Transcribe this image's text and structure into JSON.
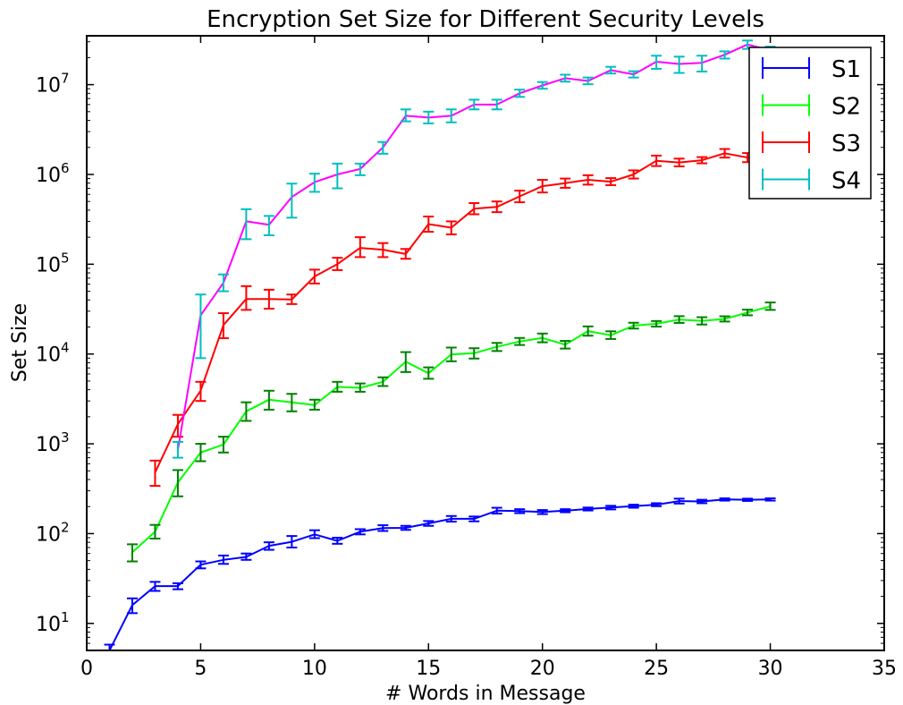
{
  "chart_data": {
    "type": "line",
    "title": "Encryption Set Size for Different Security Levels",
    "xlabel": "# Words in Message",
    "ylabel": "Set Size",
    "xlim": [
      0,
      35
    ],
    "ylim": [
      5,
      35000000
    ],
    "yscale": "log",
    "x_ticks": [
      0,
      5,
      10,
      15,
      20,
      25,
      30,
      35
    ],
    "y_ticks": [
      {
        "value": 10,
        "base": "10",
        "exp": "1"
      },
      {
        "value": 100,
        "base": "10",
        "exp": "2"
      },
      {
        "value": 1000,
        "base": "10",
        "exp": "3"
      },
      {
        "value": 10000,
        "base": "10",
        "exp": "4"
      },
      {
        "value": 100000,
        "base": "10",
        "exp": "5"
      },
      {
        "value": 1000000,
        "base": "10",
        "exp": "6"
      },
      {
        "value": 10000000,
        "base": "10",
        "exp": "7"
      }
    ],
    "grid": false,
    "legend_position": "top-right",
    "series": [
      {
        "name": "S1",
        "line_color": "#0000ff",
        "error_color": "#0000ff",
        "points": [
          {
            "x": 1,
            "y": 5,
            "lo": 4.5,
            "hi": 5.8
          },
          {
            "x": 2,
            "y": 16,
            "lo": 13,
            "hi": 19
          },
          {
            "x": 3,
            "y": 26,
            "lo": 23,
            "hi": 29
          },
          {
            "x": 4,
            "y": 26,
            "lo": 24,
            "hi": 28
          },
          {
            "x": 5,
            "y": 45,
            "lo": 41,
            "hi": 49
          },
          {
            "x": 6,
            "y": 51,
            "lo": 46,
            "hi": 57
          },
          {
            "x": 7,
            "y": 55,
            "lo": 51,
            "hi": 60
          },
          {
            "x": 8,
            "y": 73,
            "lo": 66,
            "hi": 80
          },
          {
            "x": 9,
            "y": 81,
            "lo": 70,
            "hi": 94
          },
          {
            "x": 10,
            "y": 98,
            "lo": 89,
            "hi": 109
          },
          {
            "x": 11,
            "y": 83,
            "lo": 77,
            "hi": 90
          },
          {
            "x": 12,
            "y": 105,
            "lo": 98,
            "hi": 112
          },
          {
            "x": 13,
            "y": 115,
            "lo": 107,
            "hi": 124
          },
          {
            "x": 14,
            "y": 116,
            "lo": 110,
            "hi": 122
          },
          {
            "x": 15,
            "y": 130,
            "lo": 122,
            "hi": 138
          },
          {
            "x": 16,
            "y": 146,
            "lo": 136,
            "hi": 157
          },
          {
            "x": 17,
            "y": 146,
            "lo": 137,
            "hi": 155
          },
          {
            "x": 18,
            "y": 180,
            "lo": 167,
            "hi": 194
          },
          {
            "x": 19,
            "y": 178,
            "lo": 169,
            "hi": 187
          },
          {
            "x": 20,
            "y": 174,
            "lo": 165,
            "hi": 183
          },
          {
            "x": 21,
            "y": 180,
            "lo": 173,
            "hi": 187
          },
          {
            "x": 22,
            "y": 188,
            "lo": 181,
            "hi": 195
          },
          {
            "x": 23,
            "y": 195,
            "lo": 186,
            "hi": 204
          },
          {
            "x": 24,
            "y": 202,
            "lo": 194,
            "hi": 210
          },
          {
            "x": 25,
            "y": 210,
            "lo": 202,
            "hi": 218
          },
          {
            "x": 26,
            "y": 230,
            "lo": 216,
            "hi": 245
          },
          {
            "x": 27,
            "y": 228,
            "lo": 218,
            "hi": 238
          },
          {
            "x": 28,
            "y": 240,
            "lo": 233,
            "hi": 247
          },
          {
            "x": 29,
            "y": 238,
            "lo": 231,
            "hi": 245
          },
          {
            "x": 30,
            "y": 240,
            "lo": 233,
            "hi": 247
          }
        ]
      },
      {
        "name": "S2",
        "line_color": "#00ff00",
        "error_color": "#008000",
        "points": [
          {
            "x": 2,
            "y": 62,
            "lo": 49,
            "hi": 76
          },
          {
            "x": 3,
            "y": 105,
            "lo": 88,
            "hi": 125
          },
          {
            "x": 4,
            "y": 370,
            "lo": 260,
            "hi": 510
          },
          {
            "x": 5,
            "y": 800,
            "lo": 640,
            "hi": 1000
          },
          {
            "x": 6,
            "y": 980,
            "lo": 800,
            "hi": 1200
          },
          {
            "x": 7,
            "y": 2300,
            "lo": 1800,
            "hi": 2900
          },
          {
            "x": 8,
            "y": 3100,
            "lo": 2400,
            "hi": 3900
          },
          {
            "x": 9,
            "y": 2900,
            "lo": 2300,
            "hi": 3600
          },
          {
            "x": 10,
            "y": 2700,
            "lo": 2400,
            "hi": 3100
          },
          {
            "x": 11,
            "y": 4300,
            "lo": 3800,
            "hi": 4900
          },
          {
            "x": 12,
            "y": 4200,
            "lo": 3800,
            "hi": 4700
          },
          {
            "x": 13,
            "y": 4900,
            "lo": 4400,
            "hi": 5500
          },
          {
            "x": 14,
            "y": 8200,
            "lo": 6300,
            "hi": 10500
          },
          {
            "x": 15,
            "y": 6100,
            "lo": 5300,
            "hi": 7100
          },
          {
            "x": 16,
            "y": 9900,
            "lo": 8300,
            "hi": 11800
          },
          {
            "x": 17,
            "y": 10200,
            "lo": 8900,
            "hi": 11600
          },
          {
            "x": 18,
            "y": 12000,
            "lo": 10800,
            "hi": 13300
          },
          {
            "x": 19,
            "y": 13800,
            "lo": 12600,
            "hi": 15100
          },
          {
            "x": 20,
            "y": 15100,
            "lo": 13500,
            "hi": 16900
          },
          {
            "x": 21,
            "y": 12700,
            "lo": 11500,
            "hi": 14000
          },
          {
            "x": 22,
            "y": 18000,
            "lo": 16000,
            "hi": 20300
          },
          {
            "x": 23,
            "y": 16200,
            "lo": 14700,
            "hi": 17900
          },
          {
            "x": 24,
            "y": 20700,
            "lo": 19200,
            "hi": 22300
          },
          {
            "x": 25,
            "y": 21700,
            "lo": 20200,
            "hi": 23300
          },
          {
            "x": 26,
            "y": 24200,
            "lo": 22200,
            "hi": 26400
          },
          {
            "x": 27,
            "y": 23400,
            "lo": 21300,
            "hi": 25700
          },
          {
            "x": 28,
            "y": 24600,
            "lo": 23000,
            "hi": 26300
          },
          {
            "x": 29,
            "y": 29000,
            "lo": 27000,
            "hi": 31200
          },
          {
            "x": 30,
            "y": 34000,
            "lo": 31000,
            "hi": 37500
          }
        ]
      },
      {
        "name": "S3",
        "line_color": "#ff0000",
        "error_color": "#ff0000",
        "points": [
          {
            "x": 3,
            "y": 480,
            "lo": 340,
            "hi": 650
          },
          {
            "x": 4,
            "y": 1650,
            "lo": 1200,
            "hi": 2100
          },
          {
            "x": 5,
            "y": 3900,
            "lo": 3000,
            "hi": 4900
          },
          {
            "x": 6,
            "y": 21000,
            "lo": 15000,
            "hi": 28500
          },
          {
            "x": 7,
            "y": 41000,
            "lo": 31000,
            "hi": 57000
          },
          {
            "x": 8,
            "y": 41000,
            "lo": 32000,
            "hi": 52000
          },
          {
            "x": 9,
            "y": 40500,
            "lo": 36000,
            "hi": 46000
          },
          {
            "x": 10,
            "y": 73000,
            "lo": 61000,
            "hi": 87000
          },
          {
            "x": 11,
            "y": 100000,
            "lo": 86000,
            "hi": 118000
          },
          {
            "x": 12,
            "y": 152000,
            "lo": 120000,
            "hi": 200000
          },
          {
            "x": 13,
            "y": 145000,
            "lo": 120000,
            "hi": 172000
          },
          {
            "x": 14,
            "y": 130000,
            "lo": 115000,
            "hi": 148000
          },
          {
            "x": 15,
            "y": 280000,
            "lo": 230000,
            "hi": 340000
          },
          {
            "x": 16,
            "y": 255000,
            "lo": 215000,
            "hi": 300000
          },
          {
            "x": 17,
            "y": 415000,
            "lo": 360000,
            "hi": 480000
          },
          {
            "x": 18,
            "y": 435000,
            "lo": 380000,
            "hi": 500000
          },
          {
            "x": 19,
            "y": 570000,
            "lo": 490000,
            "hi": 660000
          },
          {
            "x": 20,
            "y": 740000,
            "lo": 630000,
            "hi": 870000
          },
          {
            "x": 21,
            "y": 800000,
            "lo": 710000,
            "hi": 900000
          },
          {
            "x": 22,
            "y": 870000,
            "lo": 770000,
            "hi": 980000
          },
          {
            "x": 23,
            "y": 830000,
            "lo": 760000,
            "hi": 910000
          },
          {
            "x": 24,
            "y": 1000000,
            "lo": 900000,
            "hi": 1110000
          },
          {
            "x": 25,
            "y": 1420000,
            "lo": 1240000,
            "hi": 1620000
          },
          {
            "x": 26,
            "y": 1360000,
            "lo": 1230000,
            "hi": 1500000
          },
          {
            "x": 27,
            "y": 1440000,
            "lo": 1330000,
            "hi": 1560000
          },
          {
            "x": 28,
            "y": 1720000,
            "lo": 1540000,
            "hi": 1920000
          },
          {
            "x": 29,
            "y": 1540000,
            "lo": 1370000,
            "hi": 1730000
          },
          {
            "x": 30,
            "y": 1650000,
            "lo": 1480000,
            "hi": 1840000
          }
        ]
      },
      {
        "name": "S4",
        "line_color": "#ff00ff",
        "error_color": "#00bfbf",
        "points": [
          {
            "x": 4,
            "y": 850,
            "lo": 700,
            "hi": 1050
          },
          {
            "x": 5,
            "y": 27000,
            "lo": 9000,
            "hi": 46000
          },
          {
            "x": 6,
            "y": 62000,
            "lo": 50000,
            "hi": 77000
          },
          {
            "x": 7,
            "y": 300000,
            "lo": 190000,
            "hi": 410000
          },
          {
            "x": 8,
            "y": 275000,
            "lo": 210000,
            "hi": 345000
          },
          {
            "x": 9,
            "y": 560000,
            "lo": 330000,
            "hi": 790000
          },
          {
            "x": 10,
            "y": 820000,
            "lo": 640000,
            "hi": 1020000
          },
          {
            "x": 11,
            "y": 1000000,
            "lo": 700000,
            "hi": 1320000
          },
          {
            "x": 12,
            "y": 1150000,
            "lo": 980000,
            "hi": 1320000
          },
          {
            "x": 13,
            "y": 2000000,
            "lo": 1700000,
            "hi": 2300000
          },
          {
            "x": 14,
            "y": 4500000,
            "lo": 3900000,
            "hi": 5300000
          },
          {
            "x": 15,
            "y": 4300000,
            "lo": 3700000,
            "hi": 5000000
          },
          {
            "x": 16,
            "y": 4500000,
            "lo": 3800000,
            "hi": 5300000
          },
          {
            "x": 17,
            "y": 6000000,
            "lo": 5300000,
            "hi": 6800000
          },
          {
            "x": 18,
            "y": 6000000,
            "lo": 5300000,
            "hi": 6800000
          },
          {
            "x": 19,
            "y": 8000000,
            "lo": 7300000,
            "hi": 8800000
          },
          {
            "x": 20,
            "y": 9800000,
            "lo": 9000000,
            "hi": 10700000
          },
          {
            "x": 21,
            "y": 11800000,
            "lo": 10800000,
            "hi": 12900000
          },
          {
            "x": 22,
            "y": 11000000,
            "lo": 10100000,
            "hi": 12000000
          },
          {
            "x": 23,
            "y": 14500000,
            "lo": 13300000,
            "hi": 15800000
          },
          {
            "x": 24,
            "y": 13000000,
            "lo": 12000000,
            "hi": 14100000
          },
          {
            "x": 25,
            "y": 18000000,
            "lo": 15000000,
            "hi": 21000000
          },
          {
            "x": 26,
            "y": 17000000,
            "lo": 13500000,
            "hi": 20500000
          },
          {
            "x": 27,
            "y": 17500000,
            "lo": 14000000,
            "hi": 21000000
          },
          {
            "x": 28,
            "y": 21500000,
            "lo": 19500000,
            "hi": 23500000
          },
          {
            "x": 29,
            "y": 28000000,
            "lo": 25000000,
            "hi": 31000000
          },
          {
            "x": 30,
            "y": 24000000,
            "lo": 21500000,
            "hi": 26500000
          }
        ]
      }
    ]
  }
}
